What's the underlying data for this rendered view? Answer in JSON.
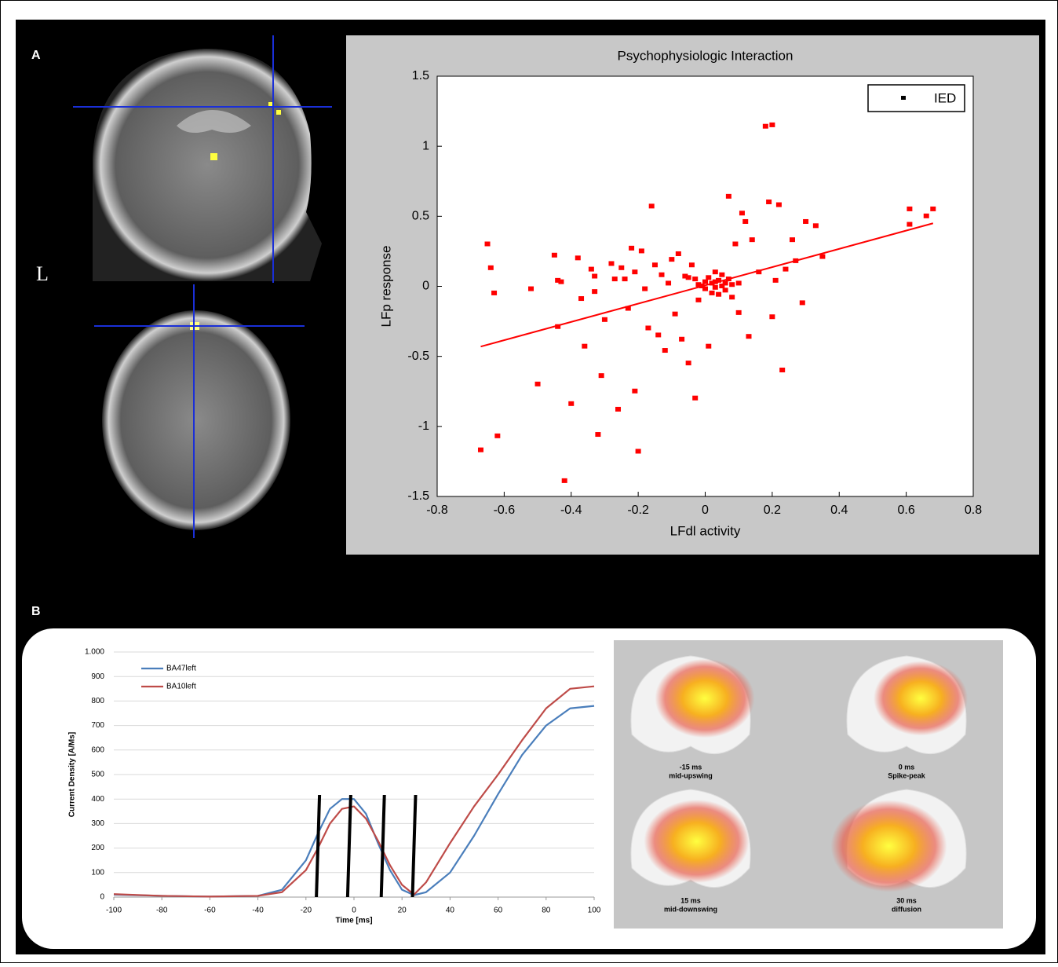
{
  "panels": {
    "a_label": "A",
    "b_label": "B",
    "orientation": "L",
    "brain_maps": [
      {
        "time": "-15 ms",
        "phase": "mid-upswing"
      },
      {
        "time": "0 ms",
        "phase": "Spike-peak"
      },
      {
        "time": "15 ms",
        "phase": "mid-downswing"
      },
      {
        "time": "30 ms",
        "phase": "diffusion"
      }
    ]
  },
  "chart_data": [
    {
      "type": "scatter",
      "title": "Psychophysiologic Interaction",
      "x_label": "LFdl activity",
      "y_label": "LFp response",
      "xlim": [
        -0.8,
        0.8
      ],
      "xticks": [
        -0.8,
        -0.6,
        -0.4,
        -0.2,
        0,
        0.2,
        0.4,
        0.6,
        0.8
      ],
      "ylim": [
        -1.5,
        1.5
      ],
      "yticks": [
        -1.5,
        -1,
        -0.5,
        0,
        0.5,
        1,
        1.5
      ],
      "legend": "upper right",
      "legend_marker_color": "#000000",
      "series": [
        {
          "name": "IED",
          "color": "#ff0000",
          "x": [
            -0.65,
            -0.64,
            -0.63,
            -0.67,
            -0.62,
            -0.52,
            -0.5,
            -0.45,
            -0.44,
            -0.43,
            -0.44,
            -0.42,
            -0.4,
            -0.38,
            -0.37,
            -0.36,
            -0.34,
            -0.33,
            -0.33,
            -0.31,
            -0.32,
            -0.3,
            -0.28,
            -0.27,
            -0.26,
            -0.25,
            -0.24,
            -0.23,
            -0.22,
            -0.21,
            -0.21,
            -0.2,
            -0.19,
            -0.18,
            -0.17,
            -0.16,
            -0.15,
            -0.14,
            -0.13,
            -0.12,
            -0.11,
            -0.1,
            -0.09,
            -0.08,
            -0.07,
            -0.06,
            -0.05,
            -0.04,
            -0.03,
            -0.02,
            -0.01,
            0,
            0,
            0.01,
            0.01,
            0.02,
            0.02,
            0.03,
            0.03,
            0.04,
            0.04,
            0.05,
            0.05,
            0.06,
            0.06,
            0.07,
            -0.03,
            0.07,
            0.08,
            0.09,
            0.1,
            0.11,
            0.12,
            0.13,
            0.14,
            0.16,
            0.18,
            0.2,
            0.19,
            0.2,
            0.21,
            0.22,
            0.23,
            0.24,
            0.26,
            0.27,
            0.29,
            0.3,
            0.33,
            0.35,
            0.61,
            0.61,
            0.66,
            0.68,
            -0.02,
            0.03,
            -0.05,
            0.08,
            0.1
          ],
          "values": [
            0.3,
            0.13,
            -0.05,
            -1.17,
            -1.07,
            -0.02,
            -0.7,
            0.22,
            0.04,
            0.03,
            -0.29,
            -1.39,
            -0.84,
            0.2,
            -0.09,
            -0.43,
            0.12,
            0.07,
            -0.04,
            -0.64,
            -1.06,
            -0.24,
            0.16,
            0.05,
            -0.88,
            0.13,
            0.05,
            -0.16,
            0.27,
            0.1,
            -0.75,
            -1.18,
            0.25,
            -0.02,
            -0.3,
            0.57,
            0.15,
            -0.35,
            0.08,
            -0.46,
            0.02,
            0.19,
            -0.2,
            0.23,
            -0.38,
            0.07,
            -0.55,
            0.15,
            0.05,
            -0.1,
            0,
            0.03,
            -0.02,
            0.06,
            -0.43,
            0.02,
            -0.05,
            0.1,
            -0.01,
            0.04,
            -0.06,
            0,
            0.08,
            -0.03,
            0.02,
            0.05,
            -0.8,
            0.64,
            -0.08,
            0.3,
            -0.19,
            0.52,
            0.46,
            -0.36,
            0.33,
            0.1,
            1.14,
            1.15,
            0.6,
            -0.22,
            0.04,
            0.58,
            -0.6,
            0.12,
            0.33,
            0.18,
            -0.12,
            0.46,
            0.43,
            0.21,
            0.44,
            0.55,
            0.5,
            0.55,
            0.01,
            0.03,
            0.06,
            0.01,
            0.02
          ]
        }
      ],
      "trend": {
        "color": "#ff0000",
        "x": [
          -0.67,
          0.68
        ],
        "values": [
          -0.43,
          0.45
        ]
      }
    },
    {
      "type": "line",
      "x_label": "Time [ms]",
      "y_label": "Current Density [A/Ms]",
      "xlim": [
        -100,
        100
      ],
      "xticks": [
        -100,
        -80,
        -60,
        -40,
        -20,
        0,
        20,
        40,
        60,
        80,
        100
      ],
      "ylim": [
        0,
        1000
      ],
      "yticks": [
        0,
        100,
        200,
        300,
        400,
        500,
        600,
        700,
        800,
        900,
        {
          "value": 1000,
          "label": "1.000"
        }
      ],
      "grid": true,
      "legend": "upper left",
      "x": [
        -100,
        -80,
        -60,
        -40,
        -30,
        -20,
        -15,
        -10,
        -5,
        0,
        5,
        10,
        15,
        20,
        25,
        30,
        40,
        50,
        60,
        70,
        80,
        90,
        100
      ],
      "series": [
        {
          "name": "BA47left",
          "color": "#4a7ebb",
          "values": [
            10,
            5,
            2,
            5,
            30,
            150,
            260,
            360,
            400,
            400,
            340,
            220,
            110,
            30,
            8,
            20,
            100,
            250,
            420,
            580,
            700,
            770,
            780
          ]
        },
        {
          "name": "BA10left",
          "color": "#be4b48",
          "values": [
            12,
            5,
            2,
            5,
            20,
            110,
            200,
            300,
            360,
            370,
            320,
            230,
            130,
            50,
            10,
            60,
            220,
            370,
            500,
            640,
            770,
            850,
            860
          ]
        }
      ],
      "time_markers": {
        "color": "#000000",
        "x": [
          -15,
          -2,
          12,
          25
        ]
      }
    }
  ]
}
